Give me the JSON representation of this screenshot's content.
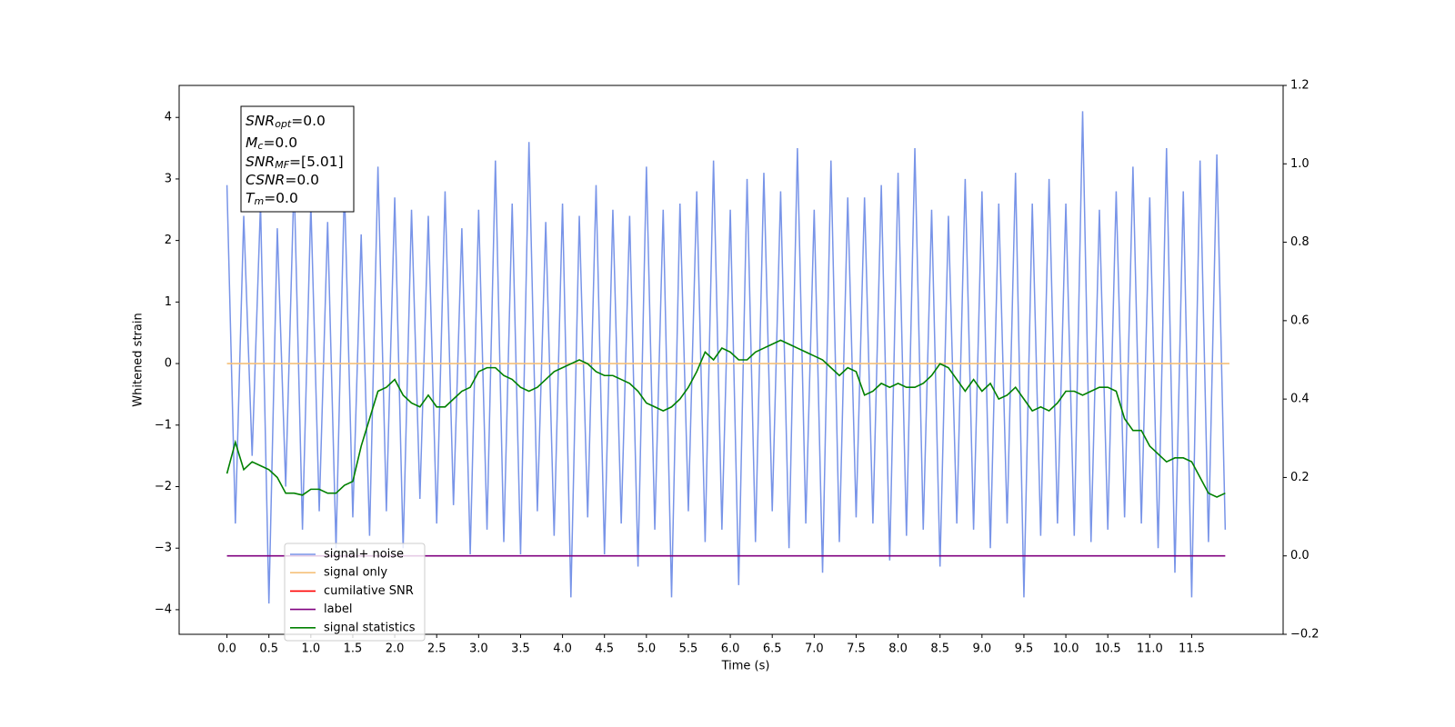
{
  "chart_data": {
    "type": "line",
    "xlabel": "Time (s)",
    "ylabel": "Whitened strain",
    "x": [
      0,
      0.1,
      0.2,
      0.3,
      0.4,
      0.5,
      0.6,
      0.7,
      0.8,
      0.9,
      1,
      1.1,
      1.2,
      1.3,
      1.4,
      1.5,
      1.6,
      1.7,
      1.8,
      1.9,
      2,
      2.1,
      2.2,
      2.3,
      2.4,
      2.5,
      2.6,
      2.7,
      2.8,
      2.9,
      3,
      3.1,
      3.2,
      3.3,
      3.4,
      3.5,
      3.6,
      3.7,
      3.8,
      3.9,
      4,
      4.1,
      4.2,
      4.3,
      4.4,
      4.5,
      4.6,
      4.7,
      4.8,
      4.9,
      5,
      5.1,
      5.2,
      5.3,
      5.4,
      5.5,
      5.6,
      5.7,
      5.8,
      5.9,
      6,
      6.1,
      6.2,
      6.3,
      6.4,
      6.5,
      6.6,
      6.7,
      6.8,
      6.9,
      7,
      7.1,
      7.2,
      7.3,
      7.4,
      7.5,
      7.6,
      7.7,
      7.8,
      7.9,
      8,
      8.1,
      8.2,
      8.3,
      8.4,
      8.5,
      8.6,
      8.7,
      8.8,
      8.9,
      9,
      9.1,
      9.2,
      9.3,
      9.4,
      9.5,
      9.6,
      9.7,
      9.8,
      9.9,
      10,
      10.1,
      10.2,
      10.3,
      10.4,
      10.5,
      10.6,
      10.7,
      10.8,
      10.9,
      11,
      11.1,
      11.2,
      11.3,
      11.4,
      11.5,
      11.6,
      11.7,
      11.8,
      11.9
    ],
    "series": [
      {
        "name": "signal+ noise",
        "color": "#7894e8",
        "values": [
          2.9,
          -2.6,
          2.4,
          -1.5,
          2.6,
          -3.9,
          2.2,
          -2.0,
          3.0,
          -2.7,
          2.6,
          -2.4,
          2.3,
          -3.0,
          2.9,
          -2.5,
          2.1,
          -2.8,
          3.2,
          -2.4,
          2.7,
          -3.0,
          2.5,
          -2.2,
          2.4,
          -2.6,
          2.8,
          -2.3,
          2.2,
          -3.1,
          2.5,
          -2.7,
          3.3,
          -2.9,
          2.6,
          -3.1,
          3.6,
          -2.4,
          2.3,
          -2.8,
          2.6,
          -3.8,
          2.4,
          -2.5,
          2.9,
          -3.1,
          2.5,
          -2.6,
          2.4,
          -3.3,
          3.2,
          -2.7,
          2.5,
          -3.8,
          2.6,
          -2.4,
          2.8,
          -2.9,
          3.3,
          -2.7,
          2.5,
          -3.6,
          3.0,
          -2.9,
          3.1,
          -2.4,
          2.8,
          -3.0,
          3.5,
          -2.6,
          2.5,
          -3.4,
          3.3,
          -2.9,
          2.7,
          -2.5,
          2.7,
          -2.6,
          2.9,
          -3.2,
          3.1,
          -2.8,
          3.5,
          -2.7,
          2.5,
          -3.3,
          2.4,
          -2.6,
          3.0,
          -2.7,
          2.8,
          -3.0,
          2.6,
          -2.6,
          3.1,
          -3.8,
          2.6,
          -2.8,
          3.0,
          -2.6,
          2.6,
          -2.8,
          4.1,
          -2.9,
          2.5,
          -2.7,
          2.8,
          -2.5,
          3.2,
          -2.6,
          2.7,
          -3.0,
          3.5,
          -3.4,
          2.8,
          -3.8,
          3.3,
          -2.9,
          3.4,
          -2.7
        ]
      },
      {
        "name": "signal only",
        "color": "#f5c07a",
        "x": [
          0,
          11.95
        ],
        "values": [
          0,
          0
        ]
      },
      {
        "name": "cumilative SNR",
        "color": "red"
      },
      {
        "name": "label",
        "color": "purple",
        "axis": "y2",
        "x": [
          0,
          11.9
        ],
        "values": [
          0,
          0
        ]
      },
      {
        "name": "signal statistics",
        "color": "green",
        "axis": "y2",
        "values": [
          0.21,
          0.29,
          0.22,
          0.24,
          0.23,
          0.22,
          0.2,
          0.16,
          0.16,
          0.155,
          0.17,
          0.17,
          0.16,
          0.16,
          0.18,
          0.19,
          0.28,
          0.35,
          0.42,
          0.43,
          0.45,
          0.41,
          0.39,
          0.38,
          0.41,
          0.38,
          0.38,
          0.4,
          0.42,
          0.43,
          0.47,
          0.48,
          0.48,
          0.46,
          0.45,
          0.43,
          0.42,
          0.43,
          0.45,
          0.47,
          0.48,
          0.49,
          0.5,
          0.49,
          0.47,
          0.46,
          0.46,
          0.45,
          0.44,
          0.42,
          0.39,
          0.38,
          0.37,
          0.38,
          0.4,
          0.43,
          0.47,
          0.52,
          0.5,
          0.53,
          0.52,
          0.5,
          0.5,
          0.52,
          0.53,
          0.54,
          0.55,
          0.54,
          0.53,
          0.52,
          0.51,
          0.5,
          0.48,
          0.46,
          0.48,
          0.47,
          0.41,
          0.42,
          0.44,
          0.43,
          0.44,
          0.43,
          0.43,
          0.44,
          0.46,
          0.49,
          0.48,
          0.45,
          0.42,
          0.45,
          0.42,
          0.44,
          0.4,
          0.41,
          0.43,
          0.4,
          0.37,
          0.38,
          0.37,
          0.39,
          0.42,
          0.42,
          0.41,
          0.42,
          0.43,
          0.43,
          0.42,
          0.35,
          0.32,
          0.32,
          0.28,
          0.26,
          0.24,
          0.25,
          0.25,
          0.24,
          0.2,
          0.16,
          0.15,
          0.16
        ]
      }
    ],
    "xlim": [
      -0.57,
      12.59
    ],
    "xticks": [
      {
        "value": 0,
        "label": "0.0"
      },
      {
        "value": 0.5,
        "label": "0.5"
      },
      {
        "value": 1,
        "label": "1.0"
      },
      {
        "value": 1.5,
        "label": "1.5"
      },
      {
        "value": 2,
        "label": "2.0"
      },
      {
        "value": 2.5,
        "label": "2.5"
      },
      {
        "value": 3,
        "label": "3.0"
      },
      {
        "value": 3.5,
        "label": "3.5"
      },
      {
        "value": 4,
        "label": "4.0"
      },
      {
        "value": 4.5,
        "label": "4.5"
      },
      {
        "value": 5,
        "label": "5.0"
      },
      {
        "value": 5.5,
        "label": "5.5"
      },
      {
        "value": 6,
        "label": "6.0"
      },
      {
        "value": 6.5,
        "label": "6.5"
      },
      {
        "value": 7,
        "label": "7.0"
      },
      {
        "value": 7.5,
        "label": "7.5"
      },
      {
        "value": 8,
        "label": "8.0"
      },
      {
        "value": 8.5,
        "label": "8.5"
      },
      {
        "value": 9,
        "label": "9.0"
      },
      {
        "value": 9.5,
        "label": "9.5"
      },
      {
        "value": 10,
        "label": "10.0"
      },
      {
        "value": 10.5,
        "label": "10.5"
      },
      {
        "value": 11,
        "label": "11.0"
      },
      {
        "value": 11.5,
        "label": "11.5"
      }
    ],
    "ylim": [
      -4.4,
      4.52
    ],
    "yticks": [
      {
        "value": -4,
        "label": "−4"
      },
      {
        "value": -3,
        "label": "−3"
      },
      {
        "value": -2,
        "label": "−2"
      },
      {
        "value": -1,
        "label": "−1"
      },
      0,
      1,
      2,
      3,
      4
    ],
    "y2lim": [
      -0.2,
      1.2
    ],
    "y2ticks": [
      {
        "value": -0.2,
        "label": "−0.2"
      },
      {
        "value": 0,
        "label": "0.0"
      },
      {
        "value": 0.2,
        "label": "0.2"
      },
      {
        "value": 0.4,
        "label": "0.4"
      },
      {
        "value": 0.6,
        "label": "0.6"
      },
      {
        "value": 0.8,
        "label": "0.8"
      },
      {
        "value": 1,
        "label": "1.0"
      },
      {
        "value": 1.2,
        "label": "1.2"
      }
    ],
    "legend": "lower left",
    "annotations": [
      {
        "text": "SNR",
        "sub": "opt",
        "rest": "=0.0"
      },
      {
        "text": "M",
        "sub": "c",
        "rest": "=0.0"
      },
      {
        "text": "SNR",
        "sub": "MF",
        "rest": "=[5.01]"
      },
      {
        "text": "CSNR",
        "rest": "=0.0"
      },
      {
        "text": "T",
        "sub": "m",
        "rest": "=0.0"
      }
    ]
  }
}
